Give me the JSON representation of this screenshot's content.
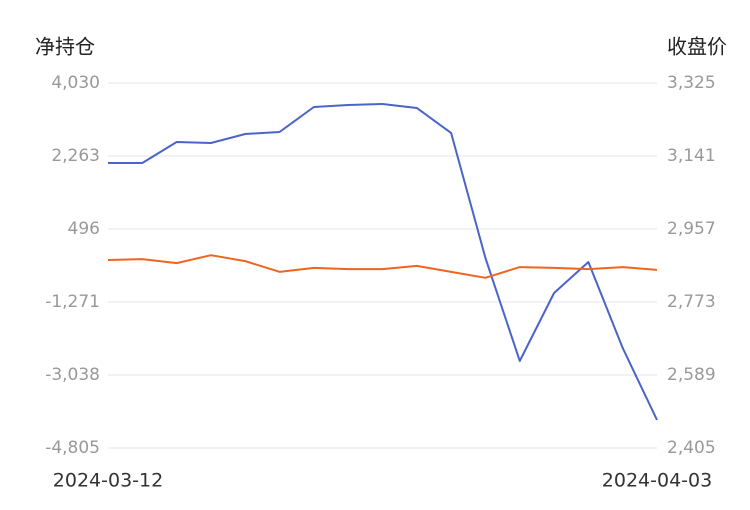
{
  "chart_data": {
    "type": "line",
    "y_label": "净持仓",
    "y2_label": "收盘价",
    "categories": [
      "2024-03-12",
      null,
      null,
      null,
      null,
      null,
      null,
      null,
      null,
      null,
      null,
      null,
      null,
      null,
      null,
      null,
      "2024-04-03"
    ],
    "series": [
      {
        "color": "#4a64c8",
        "values": [
          2094,
          2094,
          2602,
          2578,
          2796,
          2844,
          3449,
          3497,
          3522,
          3425,
          2820,
          -206,
          -2699,
          -1053,
          -303,
          -2384,
          -4127
        ]
      },
      {
        "color": "#f0641e",
        "axis": "y2",
        "values": [
          2879,
          2881,
          2871,
          2891,
          2876,
          2849,
          2859,
          2856,
          2856,
          2864,
          2849,
          2834,
          2861,
          2859,
          2856,
          2861,
          2854
        ]
      }
    ],
    "ylim": [
      -4805,
      4030
    ],
    "yticks": [
      {
        "value": -4805,
        "label": "-4,805"
      },
      {
        "value": -3038,
        "label": "-3,038"
      },
      {
        "value": -1271,
        "label": "-1,271"
      },
      496,
      {
        "value": 2263,
        "label": "2,263"
      },
      {
        "value": 4030,
        "label": "4,030"
      }
    ],
    "y2lim": [
      2405,
      3325
    ],
    "y2ticks": [
      {
        "value": 2405,
        "label": "2,405"
      },
      {
        "value": 2589,
        "label": "2,589"
      },
      {
        "value": 2773,
        "label": "2,773"
      },
      {
        "value": 2957,
        "label": "2,957"
      },
      {
        "value": 3141,
        "label": "3,141"
      },
      {
        "value": 3325,
        "label": "3,325"
      }
    ],
    "grid": true
  }
}
